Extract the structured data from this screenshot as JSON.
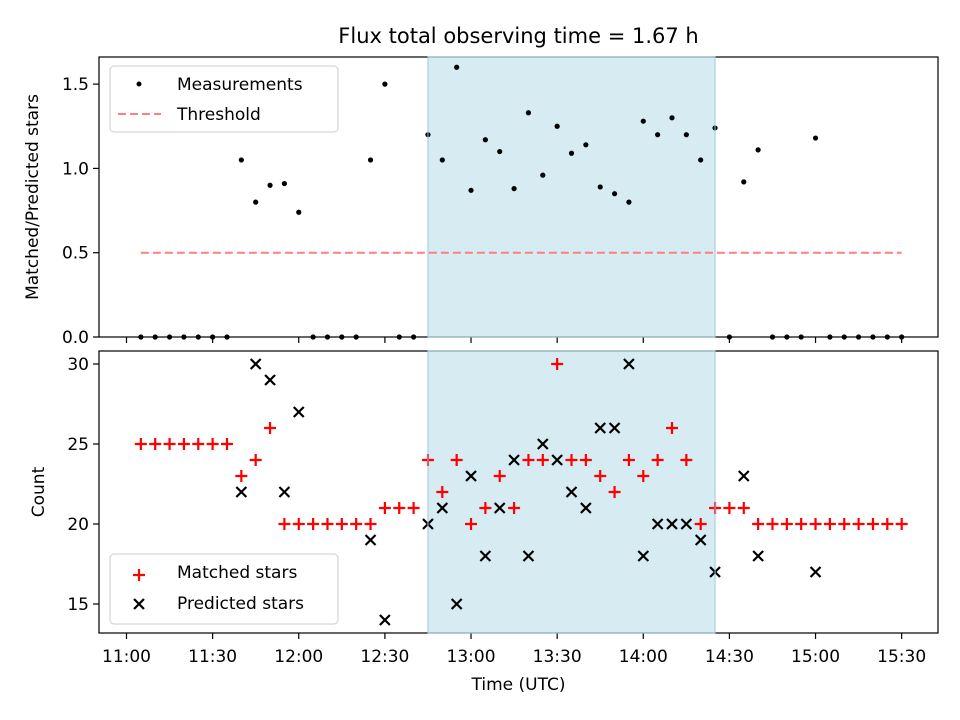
{
  "title": "Flux total observing time = 1.67 h",
  "chart_data": [
    {
      "type": "scatter",
      "ylabel": "Matched/Predicted stars",
      "ylim": [
        0,
        1.68
      ],
      "yticks": [
        "0.0",
        "0.5",
        "1.0",
        "1.5"
      ],
      "grid": false,
      "legend_position": "top-left",
      "legend": [
        {
          "label": "Measurements",
          "kind": "dot",
          "color": "#000000"
        },
        {
          "label": "Threshold",
          "kind": "dashed-line",
          "color": "#ff7f7f"
        }
      ],
      "threshold": {
        "y": 0.5,
        "x_start": "11:05",
        "x_end": "15:30"
      },
      "shaded_interval": {
        "start": "12:45",
        "end": "14:25",
        "color": "#add8e6"
      },
      "series": [
        {
          "name": "Measurements",
          "x": [
            "11:05",
            "11:10",
            "11:15",
            "11:20",
            "11:25",
            "11:30",
            "11:35",
            "11:40",
            "11:45",
            "11:50",
            "11:55",
            "12:00",
            "12:05",
            "12:10",
            "12:15",
            "12:20",
            "12:25",
            "12:30",
            "12:35",
            "12:40",
            "12:45",
            "12:50",
            "12:55",
            "13:00",
            "13:05",
            "13:10",
            "13:15",
            "13:20",
            "13:25",
            "13:30",
            "13:35",
            "13:40",
            "13:45",
            "13:50",
            "13:55",
            "14:00",
            "14:05",
            "14:10",
            "14:15",
            "14:20",
            "14:25",
            "14:30",
            "14:35",
            "14:40",
            "14:45",
            "14:50",
            "14:55",
            "15:00",
            "15:05",
            "15:10",
            "15:15",
            "15:20",
            "15:25",
            "15:30"
          ],
          "y": [
            0,
            0,
            0,
            0,
            0,
            0,
            0,
            1.05,
            0.8,
            0.9,
            0.91,
            0.74,
            0,
            0,
            0,
            0,
            1.05,
            1.5,
            0,
            0,
            1.2,
            1.05,
            1.6,
            0.87,
            1.17,
            1.1,
            0.88,
            1.33,
            0.96,
            1.25,
            1.09,
            1.14,
            0.89,
            0.85,
            0.8,
            1.28,
            1.2,
            1.3,
            1.2,
            1.05,
            1.24,
            0,
            0.92,
            1.11,
            0,
            0,
            0,
            1.18,
            0,
            0,
            0,
            0,
            0,
            0
          ]
        }
      ]
    },
    {
      "type": "scatter",
      "xlabel": "Time (UTC)",
      "ylabel": "Count",
      "ylim": [
        13.2,
        30.85
      ],
      "yticks": [
        "15",
        "20",
        "25",
        "30"
      ],
      "xticks": [
        "11:00",
        "11:30",
        "12:00",
        "12:30",
        "13:00",
        "13:30",
        "14:00",
        "14:30",
        "15:00",
        "15:30"
      ],
      "grid": false,
      "legend_position": "bottom-left",
      "shaded_interval": {
        "start": "12:45",
        "end": "14:25",
        "color": "#add8e6"
      },
      "series": [
        {
          "name": "Matched stars",
          "marker": "plus",
          "color": "#ff0000",
          "x": [
            "11:05",
            "11:10",
            "11:15",
            "11:20",
            "11:25",
            "11:30",
            "11:35",
            "11:40",
            "11:45",
            "11:50",
            "11:55",
            "12:00",
            "12:05",
            "12:10",
            "12:15",
            "12:20",
            "12:25",
            "12:30",
            "12:35",
            "12:40",
            "12:45",
            "12:50",
            "12:55",
            "13:00",
            "13:05",
            "13:10",
            "13:15",
            "13:20",
            "13:25",
            "13:30",
            "13:35",
            "13:40",
            "13:45",
            "13:50",
            "13:55",
            "14:00",
            "14:05",
            "14:10",
            "14:15",
            "14:20",
            "14:25",
            "14:30",
            "14:35",
            "14:40",
            "14:45",
            "14:50",
            "14:55",
            "15:00",
            "15:05",
            "15:10",
            "15:15",
            "15:20",
            "15:25",
            "15:30"
          ],
          "y": [
            25,
            25,
            25,
            25,
            25,
            25,
            25,
            23,
            24,
            26,
            20,
            20,
            20,
            20,
            20,
            20,
            20,
            21,
            21,
            21,
            24,
            22,
            24,
            20,
            21,
            23,
            21,
            24,
            24,
            30,
            24,
            24,
            23,
            22,
            24,
            23,
            24,
            26,
            24,
            20,
            21,
            21,
            21,
            20,
            20,
            20,
            20,
            20,
            20,
            20,
            20,
            20,
            20,
            20
          ]
        },
        {
          "name": "Predicted stars",
          "marker": "x",
          "color": "#000000",
          "x": [
            "11:40",
            "11:45",
            "11:50",
            "11:55",
            "12:00",
            "12:25",
            "12:30",
            "12:45",
            "12:50",
            "12:55",
            "13:00",
            "13:05",
            "13:10",
            "13:15",
            "13:20",
            "13:25",
            "13:30",
            "13:35",
            "13:40",
            "13:45",
            "13:50",
            "13:55",
            "14:00",
            "14:05",
            "14:10",
            "14:15",
            "14:20",
            "14:25",
            "14:35",
            "14:40",
            "15:00"
          ],
          "y": [
            22,
            30,
            29,
            22,
            27,
            19,
            14,
            20,
            21,
            15,
            23,
            18,
            21,
            24,
            18,
            25,
            24,
            22,
            21,
            26,
            26,
            30,
            18,
            20,
            20,
            20,
            19,
            17,
            23,
            18,
            17
          ]
        }
      ]
    }
  ]
}
